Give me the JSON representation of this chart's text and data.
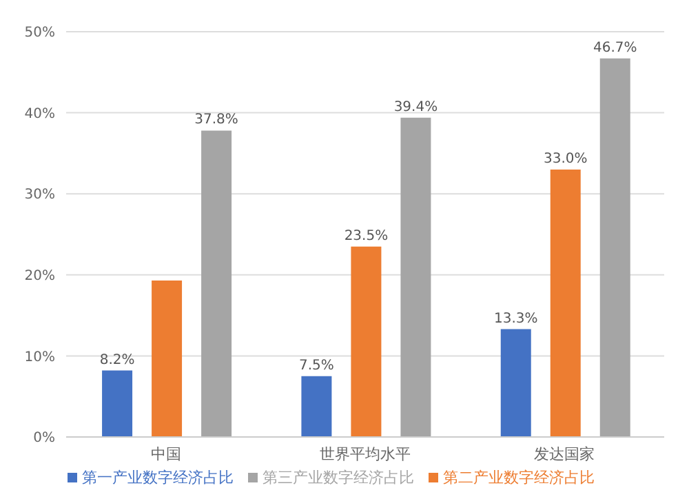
{
  "chart_data": {
    "type": "bar",
    "categories": [
      "中国",
      "世界平均水平",
      "发达国家"
    ],
    "series": [
      {
        "name": "第一产业数字经济占比",
        "color": "#4472c4",
        "values": [
          8.2,
          7.5,
          13.3
        ],
        "value_labels": [
          "8.2%",
          "7.5%",
          "13.3%"
        ]
      },
      {
        "name": "第二产业数字经济占比",
        "color": "#ed7d31",
        "values": [
          19.3,
          23.5,
          33.0
        ],
        "value_labels": [
          null,
          "23.5%",
          "33.0%"
        ]
      },
      {
        "name": "第三产业数字经济占比",
        "color": "#a5a5a5",
        "values": [
          37.8,
          39.4,
          46.7
        ],
        "value_labels": [
          "37.8%",
          "39.4%",
          "46.7%"
        ]
      }
    ],
    "ylim": [
      0,
      50
    ],
    "yticks": [
      {
        "value": 0,
        "label": "0%"
      },
      {
        "value": 10,
        "label": "10%"
      },
      {
        "value": 20,
        "label": "20%"
      },
      {
        "value": 30,
        "label": "30%"
      },
      {
        "value": 40,
        "label": "40%"
      },
      {
        "value": 50,
        "label": "50%"
      }
    ],
    "grid": "y",
    "legend": "bottom"
  }
}
